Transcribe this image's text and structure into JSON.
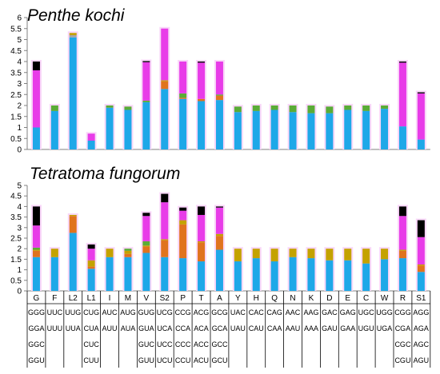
{
  "chart_data": [
    {
      "type": "bar",
      "stacked": true,
      "title": "Penthe kochi",
      "ylim": [
        0,
        6
      ],
      "yticks": [
        "0",
        "0.5",
        "1",
        "1.5",
        "2",
        "2.5",
        "3",
        "3.5",
        "4",
        "4.5",
        "5",
        "5.5",
        "6"
      ],
      "categories": [
        "G",
        "F",
        "L2",
        "L1",
        "I",
        "M",
        "V",
        "S2",
        "P",
        "T",
        "A",
        "Y",
        "H",
        "Q",
        "N",
        "K",
        "D",
        "E",
        "C",
        "W",
        "R",
        "S1"
      ],
      "series": [
        {
          "color": "#1ea8e8",
          "values": [
            1.0,
            1.75,
            5.1,
            0.4,
            1.9,
            1.8,
            2.15,
            2.75,
            2.3,
            2.2,
            2.25,
            1.7,
            1.75,
            1.8,
            1.7,
            1.65,
            1.65,
            1.8,
            1.75,
            1.85,
            1.05,
            0.45
          ]
        },
        {
          "color": "#e0731e",
          "values": [
            0,
            0,
            0,
            0,
            0,
            0,
            0,
            0.35,
            0.05,
            0.1,
            0.2,
            0,
            0,
            0,
            0,
            0,
            0,
            0,
            0,
            0,
            0,
            0
          ]
        },
        {
          "color": "#a5a5a5",
          "values": [
            0,
            0,
            0.1,
            0,
            0,
            0,
            0,
            0,
            0,
            0,
            0,
            0,
            0,
            0,
            0,
            0,
            0,
            0,
            0,
            0,
            0,
            0
          ]
        },
        {
          "color": "#c4a200",
          "values": [
            0,
            0,
            0.1,
            0,
            0,
            0,
            0,
            0.05,
            0,
            0,
            0,
            0,
            0,
            0,
            0,
            0,
            0,
            0,
            0,
            0,
            0,
            0
          ]
        },
        {
          "color": "#5aac36",
          "values": [
            0,
            0.25,
            0,
            0,
            0.1,
            0.15,
            0.07,
            0,
            0.2,
            0,
            0.05,
            0.25,
            0.25,
            0.2,
            0.3,
            0.35,
            0.3,
            0.2,
            0.25,
            0.15,
            0,
            0
          ]
        },
        {
          "color": "#e83ce8",
          "values": [
            2.6,
            0,
            0,
            0.32,
            0,
            0,
            1.75,
            2.35,
            1.45,
            1.65,
            1.5,
            0,
            0,
            0,
            0,
            0,
            0,
            0,
            0,
            0,
            2.9,
            2.1
          ]
        },
        {
          "color": "#000000",
          "values": [
            0.4,
            0,
            0,
            0,
            0,
            0,
            0.05,
            0,
            0,
            0.05,
            0,
            0,
            0,
            0,
            0,
            0,
            0,
            0,
            0,
            0,
            0.05,
            0.05
          ]
        }
      ]
    },
    {
      "type": "bar",
      "stacked": true,
      "title": "Tetratoma fungorum",
      "ylim": [
        0,
        5
      ],
      "yticks": [
        "0",
        "0.5",
        "1",
        "1.5",
        "2",
        "2.5",
        "3",
        "3.5",
        "4",
        "4.5",
        "5"
      ],
      "categories": [
        "G",
        "F",
        "L2",
        "L1",
        "I",
        "M",
        "V",
        "S2",
        "P",
        "T",
        "A",
        "Y",
        "H",
        "Q",
        "N",
        "K",
        "D",
        "E",
        "C",
        "W",
        "R",
        "S1"
      ],
      "series": [
        {
          "color": "#1ea8e8",
          "values": [
            1.6,
            1.6,
            2.75,
            1.05,
            1.6,
            1.6,
            1.8,
            1.6,
            1.55,
            1.4,
            1.95,
            1.4,
            1.55,
            1.4,
            1.6,
            1.55,
            1.45,
            1.45,
            1.3,
            1.5,
            1.55,
            0.9
          ]
        },
        {
          "color": "#e0731e",
          "values": [
            0.3,
            0,
            0.8,
            0.1,
            0,
            0.15,
            0.3,
            0.8,
            1.6,
            0.9,
            0.65,
            0,
            0,
            0,
            0,
            0,
            0,
            0,
            0,
            0,
            0.35,
            0.3
          ]
        },
        {
          "color": "#a5a5a5",
          "values": [
            0,
            0,
            0,
            0,
            0,
            0,
            0,
            0,
            0,
            0,
            0,
            0,
            0,
            0,
            0,
            0,
            0,
            0,
            0,
            0,
            0,
            0
          ]
        },
        {
          "color": "#c4a200",
          "values": [
            0.05,
            0.4,
            0.05,
            0.3,
            0.4,
            0.15,
            0.05,
            0.05,
            0.2,
            0.05,
            0.1,
            0.6,
            0.45,
            0.6,
            0.4,
            0.45,
            0.55,
            0.55,
            0.7,
            0.5,
            0.05,
            0.05
          ]
        },
        {
          "color": "#5aac36",
          "values": [
            0.1,
            0,
            0,
            0,
            0,
            0.1,
            0.2,
            0,
            0,
            0,
            0,
            0,
            0,
            0,
            0,
            0,
            0,
            0,
            0,
            0,
            0,
            0
          ]
        },
        {
          "color": "#e83ce8",
          "values": [
            1.05,
            0,
            0,
            0.55,
            0,
            0,
            1.2,
            1.75,
            0.45,
            1.25,
            1.25,
            0,
            0,
            0,
            0,
            0,
            0,
            0,
            0,
            0,
            1.6,
            1.3
          ]
        },
        {
          "color": "#000000",
          "values": [
            0.9,
            0,
            0,
            0.2,
            0,
            0,
            0.15,
            0.4,
            0.15,
            0.4,
            0.05,
            0,
            0,
            0,
            0,
            0,
            0,
            0,
            0,
            0,
            0.45,
            0.8
          ]
        }
      ]
    }
  ],
  "codon_table": [
    [
      "GGG",
      "GGA",
      "GGC",
      "GGU"
    ],
    [
      "UUC",
      "UUU"
    ],
    [
      "UUG",
      "UUA"
    ],
    [
      "CUG",
      "CUA",
      "CUC",
      "CUU"
    ],
    [
      "AUC",
      "AUU"
    ],
    [
      "AUG",
      "AUA"
    ],
    [
      "GUG",
      "GUA",
      "GUC",
      "GUU"
    ],
    [
      "UCG",
      "UCA",
      "UCC",
      "UCU"
    ],
    [
      "CCG",
      "CCA",
      "CCC",
      "CCU"
    ],
    [
      "ACG",
      "ACA",
      "ACC",
      "ACU"
    ],
    [
      "GCG",
      "GCA",
      "GCC",
      "GCU"
    ],
    [
      "UAC",
      "UAU"
    ],
    [
      "CAC",
      "CAU"
    ],
    [
      "CAG",
      "CAA"
    ],
    [
      "AAC",
      "AAU"
    ],
    [
      "AAG",
      "AAA"
    ],
    [
      "GAC",
      "GAU"
    ],
    [
      "GAG",
      "GAA"
    ],
    [
      "UGC",
      "UGU"
    ],
    [
      "UGG",
      "UGA"
    ],
    [
      "CGG",
      "CGA",
      "CGC",
      "CGU"
    ],
    [
      "AGG",
      "AGA",
      "AGC",
      "AGU"
    ]
  ]
}
